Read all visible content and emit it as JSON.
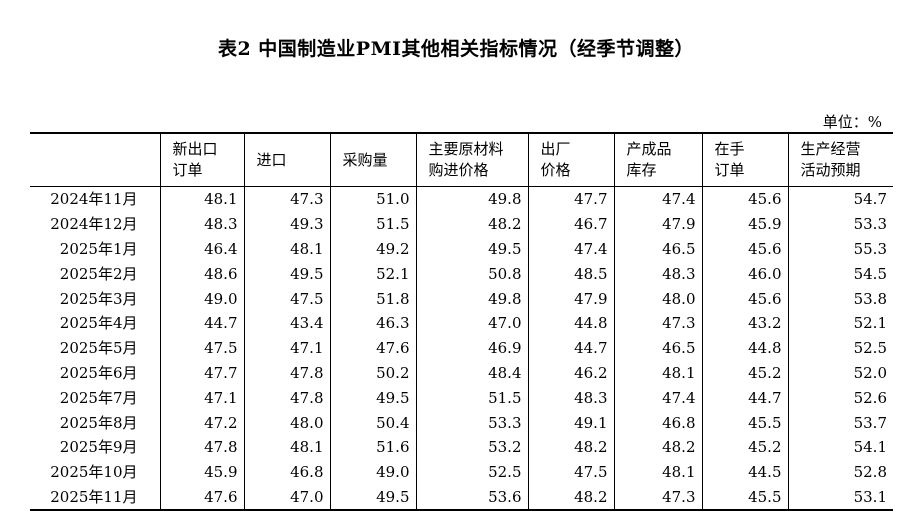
{
  "title": "表2 中国制造业PMI其他相关指标情况（经季节调整）",
  "unit": "单位：%",
  "columns": [
    {
      "lines": [
        ""
      ]
    },
    {
      "lines": [
        "新出口",
        "订单"
      ]
    },
    {
      "lines": [
        "进口"
      ]
    },
    {
      "lines": [
        "采购量"
      ]
    },
    {
      "lines": [
        "主要原材料",
        "购进价格"
      ]
    },
    {
      "lines": [
        "出厂",
        "价格"
      ]
    },
    {
      "lines": [
        "产成品",
        "库存"
      ]
    },
    {
      "lines": [
        "在手",
        "订单"
      ]
    },
    {
      "lines": [
        "生产经营",
        "活动预期"
      ]
    }
  ],
  "rows": [
    {
      "month": "2024年11月",
      "values": [
        "48.1",
        "47.3",
        "51.0",
        "49.8",
        "47.7",
        "47.4",
        "45.6",
        "54.7"
      ]
    },
    {
      "month": "2024年12月",
      "values": [
        "48.3",
        "49.3",
        "51.5",
        "48.2",
        "46.7",
        "47.9",
        "45.9",
        "53.3"
      ]
    },
    {
      "month": "2025年1月",
      "values": [
        "46.4",
        "48.1",
        "49.2",
        "49.5",
        "47.4",
        "46.5",
        "45.6",
        "55.3"
      ]
    },
    {
      "month": "2025年2月",
      "values": [
        "48.6",
        "49.5",
        "52.1",
        "50.8",
        "48.5",
        "48.3",
        "46.0",
        "54.5"
      ]
    },
    {
      "month": "2025年3月",
      "values": [
        "49.0",
        "47.5",
        "51.8",
        "49.8",
        "47.9",
        "48.0",
        "45.6",
        "53.8"
      ]
    },
    {
      "month": "2025年4月",
      "values": [
        "44.7",
        "43.4",
        "46.3",
        "47.0",
        "44.8",
        "47.3",
        "43.2",
        "52.1"
      ]
    },
    {
      "month": "2025年5月",
      "values": [
        "47.5",
        "47.1",
        "47.6",
        "46.9",
        "44.7",
        "46.5",
        "44.8",
        "52.5"
      ]
    },
    {
      "month": "2025年6月",
      "values": [
        "47.7",
        "47.8",
        "50.2",
        "48.4",
        "46.2",
        "48.1",
        "45.2",
        "52.0"
      ]
    },
    {
      "month": "2025年7月",
      "values": [
        "47.1",
        "47.8",
        "49.5",
        "51.5",
        "48.3",
        "47.4",
        "44.7",
        "52.6"
      ]
    },
    {
      "month": "2025年8月",
      "values": [
        "47.2",
        "48.0",
        "50.4",
        "53.3",
        "49.1",
        "46.8",
        "45.5",
        "53.7"
      ]
    },
    {
      "month": "2025年9月",
      "values": [
        "47.8",
        "48.1",
        "51.6",
        "53.2",
        "48.2",
        "48.2",
        "45.2",
        "54.1"
      ]
    },
    {
      "month": "2025年10月",
      "values": [
        "45.9",
        "46.8",
        "49.0",
        "52.5",
        "47.5",
        "48.1",
        "44.5",
        "52.8"
      ]
    },
    {
      "month": "2025年11月",
      "values": [
        "47.6",
        "47.0",
        "49.5",
        "53.6",
        "48.2",
        "47.3",
        "45.5",
        "53.1"
      ]
    }
  ]
}
